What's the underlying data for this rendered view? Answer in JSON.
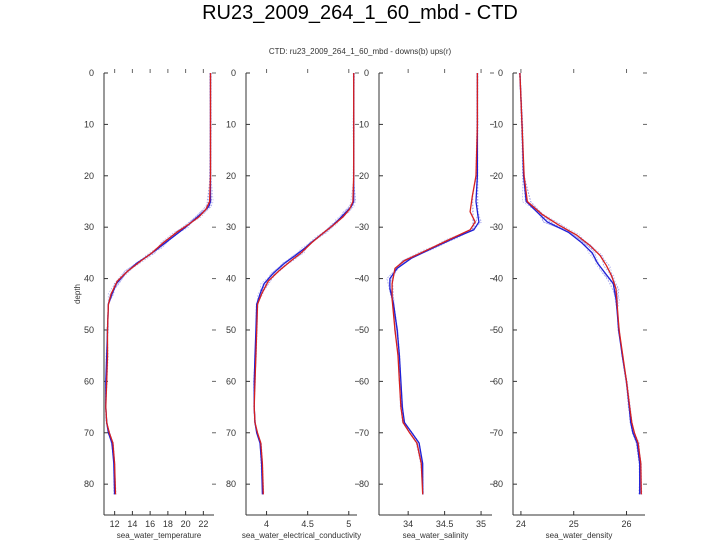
{
  "slide": {
    "title": "RU23_2009_264_1_60_mbd - CTD"
  },
  "figure": {
    "subtitle": "CTD: ru23_2009_264_1_60_mbd - downs(b) ups(r)",
    "ylabel": "depth"
  },
  "colors": {
    "down_cast": "#1f1fd6",
    "up_cast": "#d61f1f",
    "spread": "#8f8fe6"
  },
  "chart_data": [
    {
      "type": "line",
      "xlabel": "sea_water_temperature",
      "ylabel": "depth",
      "xlim": [
        10.8,
        23.2
      ],
      "ylim": [
        86,
        0
      ],
      "xticks": [
        12,
        14,
        16,
        18,
        20,
        22
      ],
      "yticks": [
        0,
        10,
        20,
        30,
        40,
        50,
        60,
        70,
        80
      ],
      "series": [
        {
          "name": "downs",
          "points": [
            [
              22.8,
              0
            ],
            [
              22.8,
              10
            ],
            [
              22.8,
              20
            ],
            [
              22.8,
              25
            ],
            [
              22.6,
              26
            ],
            [
              22.0,
              27
            ],
            [
              21.0,
              28.5
            ],
            [
              20.0,
              30
            ],
            [
              18.5,
              32
            ],
            [
              17.0,
              34
            ],
            [
              15.8,
              35.5
            ],
            [
              14.5,
              37
            ],
            [
              13.2,
              39
            ],
            [
              12.2,
              41
            ],
            [
              11.7,
              43
            ],
            [
              11.3,
              45
            ],
            [
              11.2,
              50
            ],
            [
              11.1,
              55
            ],
            [
              11.0,
              60
            ],
            [
              11.0,
              65
            ],
            [
              11.1,
              68
            ],
            [
              11.3,
              70
            ],
            [
              11.7,
              72
            ],
            [
              11.9,
              76
            ],
            [
              12.0,
              82
            ]
          ]
        },
        {
          "name": "ups",
          "points": [
            [
              22.8,
              0
            ],
            [
              22.8,
              10
            ],
            [
              22.8,
              20
            ],
            [
              22.7,
              25
            ],
            [
              22.3,
              26.5
            ],
            [
              21.5,
              28
            ],
            [
              20.3,
              29.5
            ],
            [
              19.0,
              31
            ],
            [
              17.5,
              33
            ],
            [
              16.2,
              35
            ],
            [
              15.0,
              36.5
            ],
            [
              13.5,
              38.5
            ],
            [
              12.3,
              40.5
            ],
            [
              11.6,
              43
            ],
            [
              11.3,
              45
            ],
            [
              11.2,
              50
            ],
            [
              11.2,
              55
            ],
            [
              11.1,
              60
            ],
            [
              11.0,
              65
            ],
            [
              11.1,
              68
            ],
            [
              11.4,
              70
            ],
            [
              11.8,
              72
            ],
            [
              12.0,
              76
            ],
            [
              12.1,
              82
            ]
          ]
        }
      ]
    },
    {
      "type": "line",
      "xlabel": "sea_water_electrical_conductivity",
      "ylabel": "depth",
      "xlim": [
        3.75,
        5.1
      ],
      "ylim": [
        86,
        0
      ],
      "xticks": [
        4,
        4.5,
        5
      ],
      "yticks": [
        0,
        10,
        20,
        30,
        40,
        50,
        60,
        70,
        80
      ],
      "series": [
        {
          "name": "downs",
          "points": [
            [
              5.06,
              0
            ],
            [
              5.06,
              10
            ],
            [
              5.06,
              20
            ],
            [
              5.06,
              25
            ],
            [
              5.03,
              26
            ],
            [
              4.97,
              27
            ],
            [
              4.88,
              28.5
            ],
            [
              4.78,
              30
            ],
            [
              4.62,
              32
            ],
            [
              4.47,
              34
            ],
            [
              4.35,
              35.5
            ],
            [
              4.22,
              37
            ],
            [
              4.08,
              39
            ],
            [
              3.97,
              41
            ],
            [
              3.92,
              43
            ],
            [
              3.88,
              45
            ],
            [
              3.87,
              50
            ],
            [
              3.86,
              55
            ],
            [
              3.85,
              60
            ],
            [
              3.85,
              65
            ],
            [
              3.86,
              68
            ],
            [
              3.88,
              70
            ],
            [
              3.92,
              72
            ],
            [
              3.94,
              76
            ],
            [
              3.95,
              82
            ]
          ]
        },
        {
          "name": "ups",
          "points": [
            [
              5.06,
              0
            ],
            [
              5.06,
              10
            ],
            [
              5.06,
              20
            ],
            [
              5.05,
              25
            ],
            [
              5.01,
              26.5
            ],
            [
              4.93,
              28
            ],
            [
              4.82,
              29.5
            ],
            [
              4.7,
              31
            ],
            [
              4.55,
              33
            ],
            [
              4.42,
              35
            ],
            [
              4.3,
              36.5
            ],
            [
              4.15,
              38.5
            ],
            [
              4.02,
              40.5
            ],
            [
              3.94,
              43
            ],
            [
              3.89,
              45
            ],
            [
              3.88,
              50
            ],
            [
              3.87,
              55
            ],
            [
              3.86,
              60
            ],
            [
              3.85,
              65
            ],
            [
              3.86,
              68
            ],
            [
              3.89,
              70
            ],
            [
              3.93,
              72
            ],
            [
              3.95,
              76
            ],
            [
              3.96,
              82
            ]
          ]
        }
      ]
    },
    {
      "type": "line",
      "xlabel": "sea_water_salinity",
      "ylabel": "depth",
      "xlim": [
        33.6,
        35.15
      ],
      "ylim": [
        86,
        0
      ],
      "xticks": [
        34,
        34.5,
        35
      ],
      "yticks": [
        0,
        10,
        20,
        30,
        40,
        50,
        60,
        70,
        80
      ],
      "series": [
        {
          "name": "downs",
          "points": [
            [
              34.95,
              0
            ],
            [
              34.95,
              10
            ],
            [
              34.95,
              20
            ],
            [
              34.93,
              25
            ],
            [
              34.95,
              27
            ],
            [
              34.97,
              29
            ],
            [
              34.9,
              30.5
            ],
            [
              34.65,
              32
            ],
            [
              34.35,
              34
            ],
            [
              34.05,
              36
            ],
            [
              33.85,
              38
            ],
            [
              33.75,
              40
            ],
            [
              33.75,
              42
            ],
            [
              33.8,
              45
            ],
            [
              33.85,
              50
            ],
            [
              33.88,
              55
            ],
            [
              33.9,
              60
            ],
            [
              33.92,
              65
            ],
            [
              33.95,
              68
            ],
            [
              34.05,
              70
            ],
            [
              34.15,
              72
            ],
            [
              34.2,
              76
            ],
            [
              34.2,
              82
            ]
          ]
        },
        {
          "name": "ups",
          "points": [
            [
              34.95,
              0
            ],
            [
              34.95,
              10
            ],
            [
              34.93,
              20
            ],
            [
              34.88,
              24
            ],
            [
              34.85,
              27
            ],
            [
              34.92,
              29
            ],
            [
              34.85,
              30.5
            ],
            [
              34.55,
              32.5
            ],
            [
              34.25,
              34.5
            ],
            [
              33.95,
              36.5
            ],
            [
              33.82,
              38
            ],
            [
              33.78,
              41
            ],
            [
              33.78,
              44
            ],
            [
              33.82,
              50
            ],
            [
              33.86,
              55
            ],
            [
              33.88,
              60
            ],
            [
              33.9,
              65
            ],
            [
              33.93,
              68
            ],
            [
              34.02,
              70
            ],
            [
              34.12,
              72
            ],
            [
              34.18,
              76
            ],
            [
              34.2,
              82
            ]
          ]
        }
      ]
    },
    {
      "type": "line",
      "xlabel": "sea_water_density",
      "ylabel": "depth",
      "xlim": [
        23.85,
        26.35
      ],
      "ylim": [
        86,
        0
      ],
      "xticks": [
        24,
        25,
        26
      ],
      "yticks": [
        0,
        10,
        20,
        30,
        40,
        50,
        60,
        70,
        80
      ],
      "series": [
        {
          "name": "downs",
          "points": [
            [
              23.98,
              0
            ],
            [
              24.02,
              10
            ],
            [
              24.05,
              20
            ],
            [
              24.1,
              25
            ],
            [
              24.3,
              27
            ],
            [
              24.5,
              29
            ],
            [
              24.9,
              31
            ],
            [
              25.15,
              33
            ],
            [
              25.35,
              35
            ],
            [
              25.45,
              37
            ],
            [
              25.6,
              39
            ],
            [
              25.75,
              41
            ],
            [
              25.8,
              44
            ],
            [
              25.82,
              46
            ],
            [
              25.85,
              50
            ],
            [
              25.92,
              55
            ],
            [
              26.0,
              60
            ],
            [
              26.05,
              65
            ],
            [
              26.08,
              68
            ],
            [
              26.12,
              70
            ],
            [
              26.2,
              72
            ],
            [
              26.25,
              76
            ],
            [
              26.25,
              82
            ]
          ]
        },
        {
          "name": "ups",
          "points": [
            [
              23.98,
              0
            ],
            [
              24.02,
              10
            ],
            [
              24.06,
              20
            ],
            [
              24.12,
              25
            ],
            [
              24.4,
              27.5
            ],
            [
              24.7,
              29.5
            ],
            [
              25.05,
              31.5
            ],
            [
              25.3,
              33.5
            ],
            [
              25.5,
              35.5
            ],
            [
              25.62,
              37.5
            ],
            [
              25.72,
              39.5
            ],
            [
              25.8,
              42
            ],
            [
              25.83,
              46
            ],
            [
              25.86,
              50
            ],
            [
              25.93,
              55
            ],
            [
              26.0,
              60
            ],
            [
              26.06,
              65
            ],
            [
              26.1,
              68
            ],
            [
              26.15,
              70
            ],
            [
              26.22,
              72
            ],
            [
              26.27,
              76
            ],
            [
              26.28,
              82
            ]
          ]
        }
      ]
    }
  ]
}
